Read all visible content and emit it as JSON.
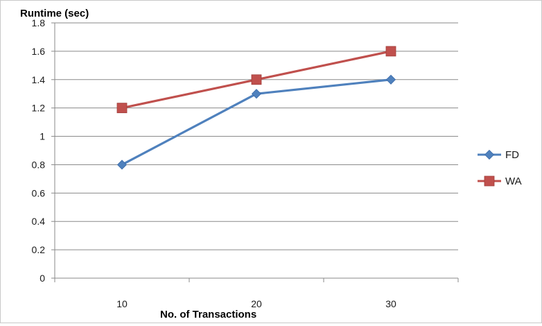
{
  "chart_data": {
    "type": "line",
    "title": "",
    "xlabel": "No. of Transactions",
    "ylabel": "Runtime (sec)",
    "categories": [
      "10",
      "20",
      "30"
    ],
    "ylim": [
      0,
      1.8
    ],
    "yticks": [
      "0",
      "0.2",
      "0.4",
      "0.6",
      "0.8",
      "1",
      "1.2",
      "1.4",
      "1.6",
      "1.8"
    ],
    "grid": true,
    "legend_position": "right",
    "series": [
      {
        "name": "FD",
        "values": [
          0.8,
          1.3,
          1.4
        ],
        "color": "#4f81bd",
        "marker": "diamond"
      },
      {
        "name": "WA",
        "values": [
          1.2,
          1.4,
          1.6
        ],
        "color": "#c0504d",
        "marker": "square"
      }
    ]
  }
}
